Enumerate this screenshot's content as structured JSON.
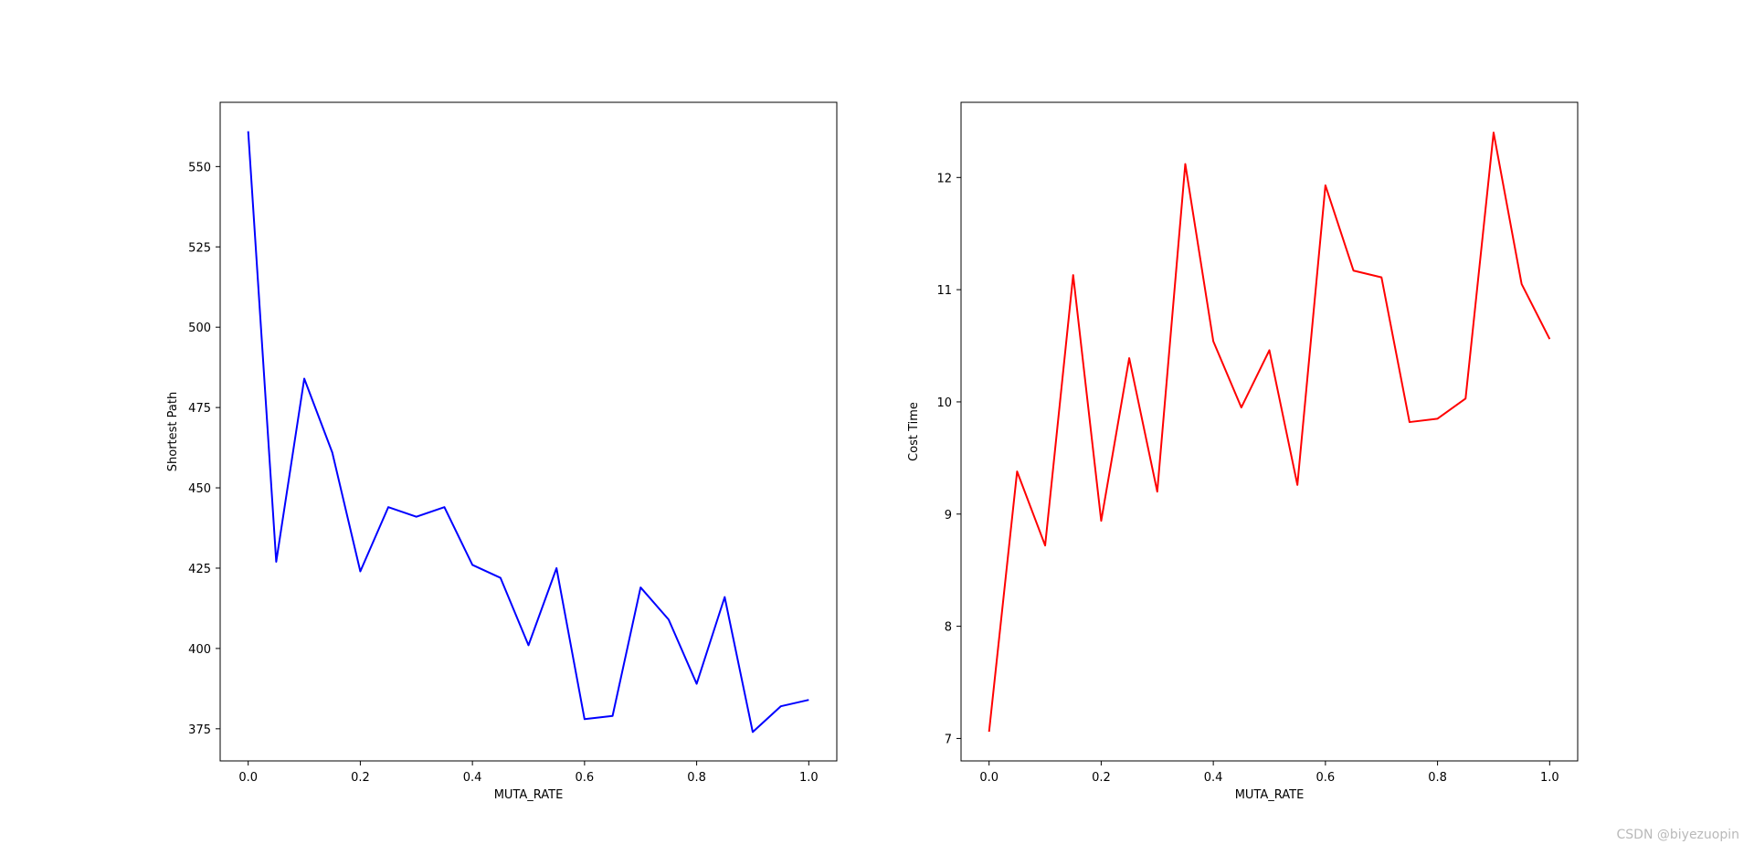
{
  "chart_data": [
    {
      "type": "line",
      "xlabel": "MUTA_RATE",
      "ylabel": "Shortest Path",
      "color": "#0000ff",
      "xlim": [
        -0.05,
        1.05
      ],
      "ylim": [
        365,
        570
      ],
      "xticks": [
        0.0,
        0.2,
        0.4,
        0.6,
        0.8,
        1.0
      ],
      "yticks": [
        375,
        400,
        425,
        450,
        475,
        500,
        525,
        550
      ],
      "x": [
        0.0,
        0.05,
        0.1,
        0.15,
        0.2,
        0.25,
        0.3,
        0.35,
        0.4,
        0.45,
        0.5,
        0.55,
        0.6,
        0.65,
        0.7,
        0.75,
        0.8,
        0.85,
        0.9,
        0.95,
        1.0
      ],
      "y": [
        561,
        427,
        484,
        461,
        424,
        444,
        441,
        444,
        426,
        422,
        401,
        425,
        378,
        379,
        419,
        409,
        389,
        416,
        374,
        382,
        384
      ]
    },
    {
      "type": "line",
      "xlabel": "MUTA_RATE",
      "ylabel": "Cost Time",
      "color": "#ff0000",
      "xlim": [
        -0.05,
        1.05
      ],
      "ylim": [
        6.8,
        12.67
      ],
      "xticks": [
        0.0,
        0.2,
        0.4,
        0.6,
        0.8,
        1.0
      ],
      "yticks": [
        7,
        8,
        9,
        10,
        11,
        12
      ],
      "x": [
        0.0,
        0.05,
        0.1,
        0.15,
        0.2,
        0.25,
        0.3,
        0.35,
        0.4,
        0.45,
        0.5,
        0.55,
        0.6,
        0.65,
        0.7,
        0.75,
        0.8,
        0.85,
        0.9,
        0.95,
        1.0
      ],
      "y": [
        7.06,
        9.38,
        8.72,
        11.13,
        8.94,
        10.39,
        9.2,
        12.12,
        10.54,
        9.95,
        10.46,
        9.26,
        11.93,
        11.17,
        11.11,
        9.82,
        9.85,
        10.03,
        12.4,
        11.05,
        10.56
      ]
    }
  ],
  "watermark": "CSDN @biyezuopin"
}
